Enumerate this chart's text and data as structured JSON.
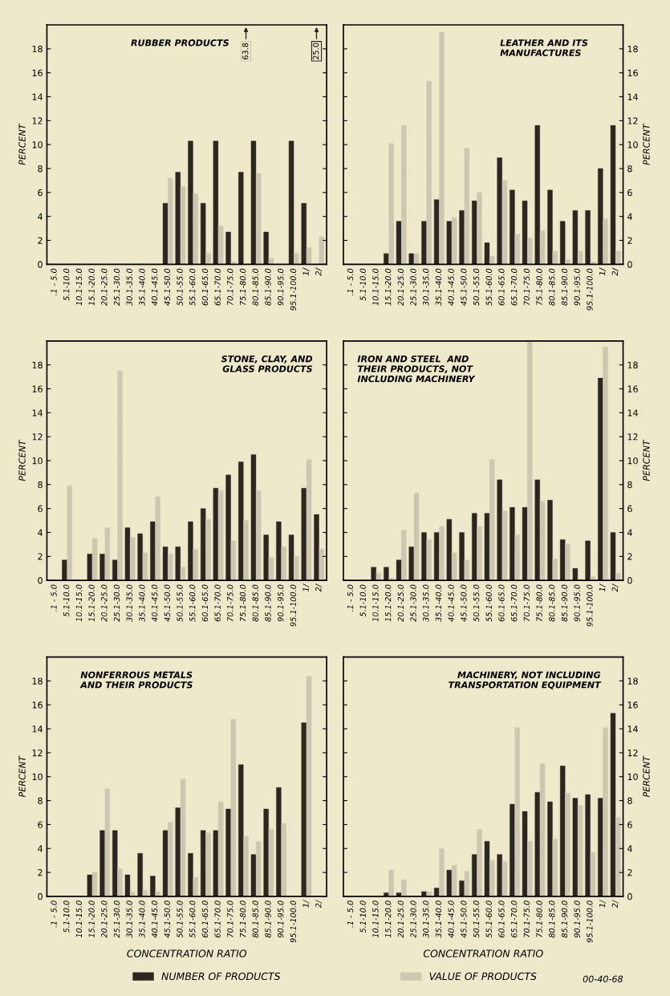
{
  "chart_data": [
    {
      "type": "bar",
      "title": "RUBBER PRODUCTS",
      "ylabel": "PERCENT",
      "categories": [
        ".1 - 5.0",
        "5.1-10.0",
        "10.1-15.0",
        "15.1-20.0",
        "20.1-25.0",
        "25.1-30.0",
        "30.1-35.0",
        "35.1-40.0",
        "40.1-45.0",
        "45.1-50.0",
        "50.1-55.0",
        "55.1-60.0",
        "60.1-65.0",
        "65.1-70.0",
        "70.1-75.0",
        "75.1-80.0",
        "80.1-85.0",
        "85.1-90.0",
        "90.1-95.0",
        "95.1-100.0",
        "1/",
        "2/"
      ],
      "ylim": [
        0,
        20
      ],
      "yticks": [
        0,
        2,
        4,
        6,
        8,
        10,
        12,
        14,
        16,
        18
      ],
      "grid": false,
      "series": [
        {
          "color": "#2b2620",
          "values": [
            0,
            0,
            0,
            0,
            0,
            0,
            0,
            0,
            0,
            5.1,
            7.7,
            10.3,
            5.1,
            10.3,
            2.7,
            7.7,
            10.3,
            2.7,
            0,
            10.3,
            5.1,
            null
          ],
          "value_labels": [
            null,
            null,
            null,
            null,
            null,
            null,
            null,
            null,
            null,
            null,
            null,
            null,
            null,
            null,
            null,
            null,
            null,
            null,
            null,
            null,
            null,
            "25.0"
          ]
        },
        {
          "color": "#cdc7b1",
          "values": [
            0,
            0,
            0,
            0,
            0,
            0,
            0,
            0,
            0,
            7.2,
            6.5,
            5.9,
            0.9,
            3.2,
            0.2,
            null,
            7.6,
            0.5,
            0,
            0.9,
            1.4,
            2.3
          ],
          "value_labels": [
            null,
            null,
            null,
            null,
            null,
            null,
            null,
            null,
            null,
            null,
            null,
            null,
            null,
            null,
            null,
            "63.8",
            null,
            null,
            null,
            null,
            null,
            null
          ]
        }
      ]
    },
    {
      "type": "bar",
      "title": "LEATHER AND ITS\nMANUFACTURES",
      "ylabel": "PERCENT",
      "categories": [
        ".1 - 5.0",
        "5.1-10.0",
        "10.1-15.0",
        "15.1-20.0",
        "20.1-25.0",
        "25.1-30.0",
        "30.1-35.0",
        "35.1-40.0",
        "40.1-45.0",
        "45.1-50.0",
        "50.1-55.0",
        "55.1-60.0",
        "60.1-65.0",
        "65.1-70.0",
        "70.1-75.0",
        "75.1-80.0",
        "80.1-85.0",
        "85.1-90.0",
        "90.1-95.0",
        "95.1-100.0",
        "1/",
        "2/"
      ],
      "ylim": [
        0,
        20
      ],
      "yticks": [
        0,
        2,
        4,
        6,
        8,
        10,
        12,
        14,
        16,
        18
      ],
      "grid": false,
      "series": [
        {
          "color": "#2b2620",
          "values": [
            0,
            0,
            0,
            0.9,
            3.6,
            0.9,
            3.6,
            5.4,
            3.6,
            4.5,
            5.3,
            1.8,
            8.9,
            6.2,
            5.3,
            11.6,
            6.2,
            3.6,
            4.5,
            4.5,
            8.0,
            11.6
          ]
        },
        {
          "color": "#cdc7b1",
          "values": [
            0,
            0,
            0,
            10.1,
            11.6,
            0.9,
            15.3,
            19.4,
            3.9,
            9.7,
            6.0,
            0.7,
            7.0,
            2.5,
            2.2,
            2.8,
            1.1,
            0.4,
            1.1,
            0.2,
            3.8,
            1.1
          ]
        }
      ]
    },
    {
      "type": "bar",
      "title": "STONE, CLAY, AND\nGLASS PRODUCTS",
      "ylabel": "PERCENT",
      "categories": [
        ".1 - 5.0",
        "5.1-10.0",
        "10.1-15.0",
        "15.1-20.0",
        "20.1-25.0",
        "25.1-30.0",
        "30.1-35.0",
        "35.1-40.0",
        "40.1-45.0",
        "45.1-50.0",
        "50.1-55.0",
        "55.1-60.0",
        "60.1-65.0",
        "65.1-70.0",
        "70.1-75.0",
        "75.1-80.0",
        "80.1-85.0",
        "85.1-90.0",
        "90.1-95.0",
        "95.1-100.0",
        "1/",
        "2/"
      ],
      "ylim": [
        0,
        20
      ],
      "yticks": [
        0,
        2,
        4,
        6,
        8,
        10,
        12,
        14,
        16,
        18
      ],
      "grid": false,
      "series": [
        {
          "color": "#2b2620",
          "values": [
            0,
            1.7,
            0,
            2.2,
            2.2,
            1.7,
            4.4,
            3.9,
            4.9,
            2.8,
            2.8,
            4.9,
            6.0,
            7.7,
            8.8,
            9.9,
            10.5,
            3.8,
            4.9,
            3.8,
            7.7,
            5.5
          ]
        },
        {
          "color": "#cdc7b1",
          "values": [
            0,
            7.9,
            0,
            3.5,
            4.4,
            17.5,
            3.6,
            2.3,
            7.0,
            2.2,
            1.1,
            2.6,
            5.1,
            7.5,
            3.3,
            5.0,
            7.5,
            1.9,
            2.8,
            2.0,
            10.1,
            2.6
          ]
        }
      ]
    },
    {
      "type": "bar",
      "title": "IRON AND STEEL  AND\nTHEIR PRODUCTS, NOT\nINCLUDING MACHINERY",
      "ylabel": "PERCENT",
      "categories": [
        ".1 - 5.0",
        "5.1-10.0",
        "10.1-15.0",
        "15.1-20.0",
        "20.1-25.0",
        "25.1-30.0",
        "30.1-35.0",
        "35.1-40.0",
        "40.1-45.0",
        "45.1-50.0",
        "50.1-55.0",
        "55.1-60.0",
        "60.1-65.0",
        "65.1-70.0",
        "70.1-75.0",
        "75.1-80.0",
        "80.1-85.0",
        "85.1-90.0",
        "90.1-95.0",
        "95.1-100.0",
        "1/",
        "2/"
      ],
      "ylim": [
        0,
        20
      ],
      "yticks": [
        0,
        2,
        4,
        6,
        8,
        10,
        12,
        14,
        16,
        18
      ],
      "grid": false,
      "series": [
        {
          "color": "#2b2620",
          "values": [
            0,
            0,
            1.1,
            1.1,
            1.7,
            2.8,
            4.0,
            4.0,
            5.1,
            4.0,
            5.6,
            5.6,
            8.4,
            6.1,
            6.1,
            8.4,
            6.7,
            3.4,
            1.0,
            3.3,
            16.9,
            4.0
          ]
        },
        {
          "color": "#cdc7b1",
          "values": [
            0,
            0,
            0.6,
            0.2,
            4.2,
            7.3,
            3.4,
            4.5,
            2.3,
            1.7,
            4.5,
            10.1,
            5.8,
            3.8,
            19.9,
            6.6,
            1.8,
            3.0,
            0.1,
            0.3,
            19.5,
            0.6
          ]
        }
      ]
    },
    {
      "type": "bar",
      "title": "NONFERROUS METALS\nAND THEIR PRODUCTS",
      "ylabel": "PERCENT",
      "xlabel": "CONCENTRATION RATIO",
      "categories": [
        ".1 - 5.0",
        "5.1-10.0",
        "10.1-15.0",
        "15.1-20.0",
        "20.1-25.0",
        "25.1-30.0",
        "30.1-35.0",
        "35.1-40.0",
        "40.1-45.0",
        "45.1-50.0",
        "50.1-55.0",
        "55.1-60.0",
        "60.1-65.0",
        "65.1-70.0",
        "70.1-75.0",
        "75.1-80.0",
        "80.1-85.0",
        "85.1-90.0",
        "90.1-95.0",
        "95.1-100.0",
        "1/",
        "2/"
      ],
      "ylim": [
        0,
        20
      ],
      "yticks": [
        0,
        2,
        4,
        6,
        8,
        10,
        12,
        14,
        16,
        18
      ],
      "grid": false,
      "series": [
        {
          "color": "#2b2620",
          "values": [
            0,
            0,
            0,
            1.8,
            5.5,
            5.5,
            1.8,
            3.6,
            1.7,
            5.5,
            7.4,
            3.6,
            5.5,
            5.5,
            7.3,
            11.0,
            3.5,
            7.3,
            9.1,
            0,
            14.5,
            0
          ]
        },
        {
          "color": "#cdc7b1",
          "values": [
            0,
            0,
            0,
            2.0,
            9.0,
            2.3,
            0.4,
            0.5,
            0.4,
            6.2,
            9.8,
            1.6,
            5.3,
            7.9,
            14.8,
            5.0,
            4.6,
            5.6,
            6.1,
            0,
            18.4,
            0
          ]
        }
      ]
    },
    {
      "type": "bar",
      "title": "MACHINERY, NOT INCLUDING\nTRANSPORTATION EQUIPMENT",
      "ylabel": "PERCENT",
      "xlabel": "CONCENTRATION RATIO",
      "categories": [
        ".1 - 5.0",
        "5.1-10.0",
        "10.1-15.0",
        "15.1-20.0",
        "20.1-25.0",
        "25.1-30.0",
        "30.1-35.0",
        "35.1-40.0",
        "40.1-45.0",
        "45.1-50.0",
        "50.1-55.0",
        "55.1-60.0",
        "60.1-65.0",
        "65.1-70.0",
        "70.1-75.0",
        "75.1-80.0",
        "80.1-85.0",
        "85.1-90.0",
        "90.1-95.0",
        "95.1-100.0",
        "1/",
        "2/"
      ],
      "ylim": [
        0,
        20
      ],
      "yticks": [
        0,
        2,
        4,
        6,
        8,
        10,
        12,
        14,
        16,
        18
      ],
      "grid": false,
      "legend": "bottom",
      "annotations": [
        "00-40-68"
      ],
      "series": [
        {
          "name": "NUMBER OF PRODUCTS",
          "color": "#2b2620",
          "values": [
            0,
            0,
            0,
            0.3,
            0.3,
            0,
            0.4,
            0.7,
            2.2,
            1.3,
            3.5,
            4.6,
            3.5,
            7.7,
            7.1,
            8.7,
            7.9,
            10.9,
            8.2,
            8.5,
            8.2,
            15.3
          ]
        },
        {
          "name": "VALUE OF PRODUCTS",
          "color": "#cdc7b1",
          "values": [
            0,
            0,
            0,
            2.2,
            1.4,
            0,
            0.4,
            4.0,
            2.6,
            2.1,
            5.6,
            3.0,
            2.9,
            14.1,
            4.6,
            11.1,
            4.8,
            8.6,
            7.6,
            3.7,
            14.1,
            6.6
          ]
        }
      ]
    }
  ]
}
